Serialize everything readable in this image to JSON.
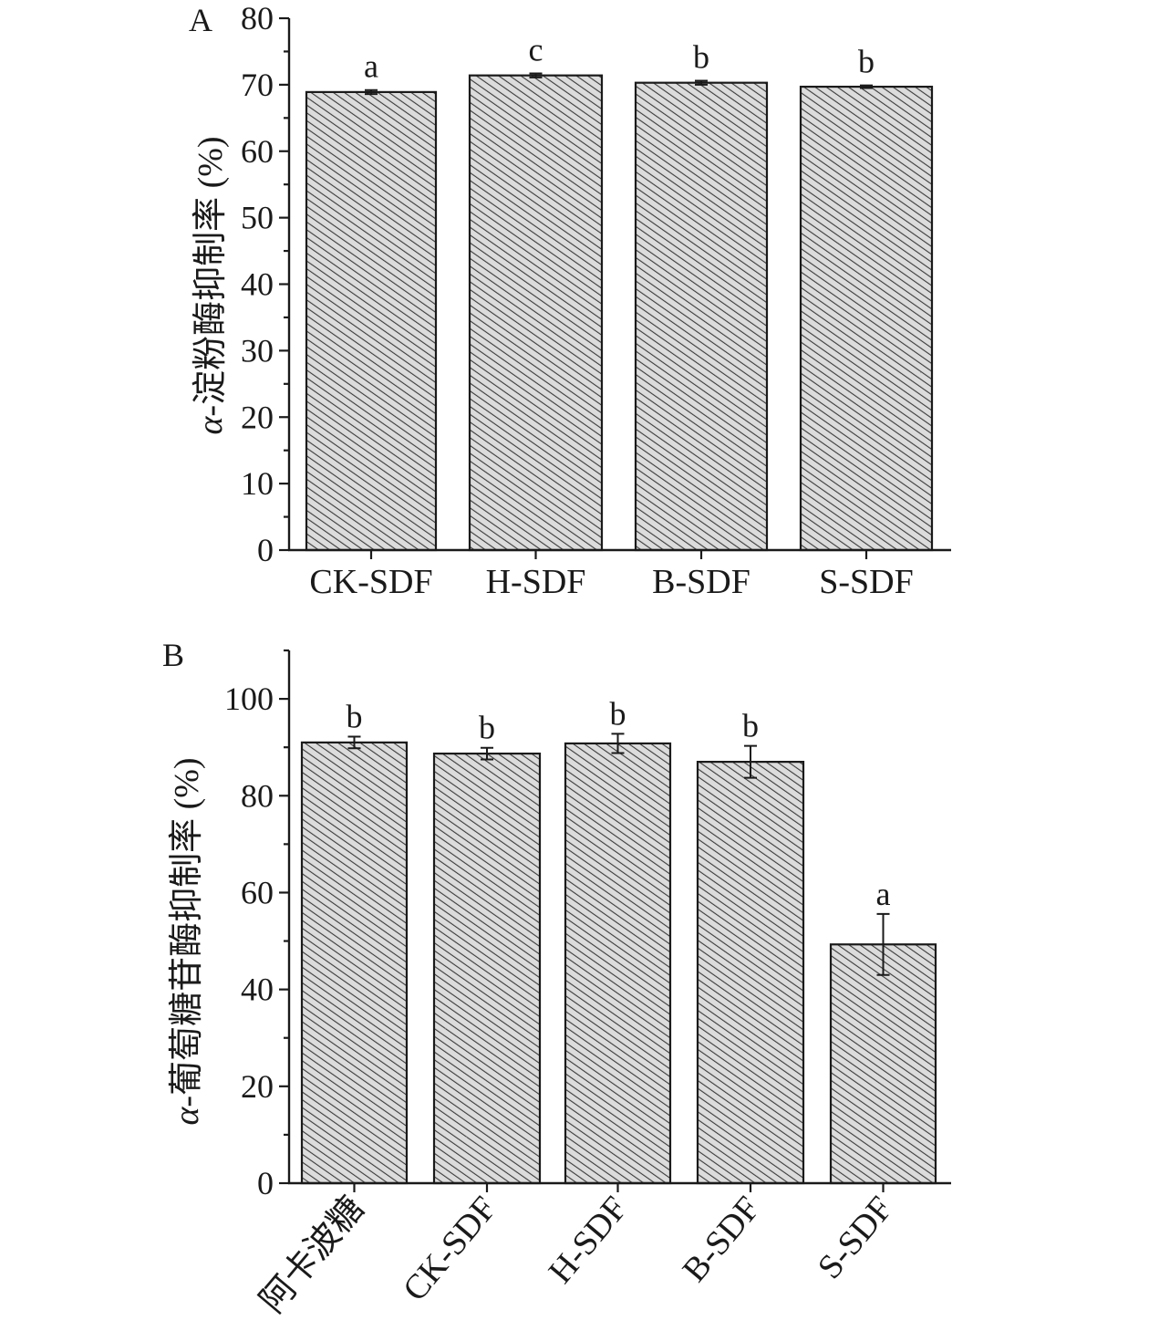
{
  "chart_data": [
    {
      "type": "bar",
      "panel_label": "A",
      "ylabel": "α-淀粉酶抑制率 (%)",
      "ylabel_italic_prefix": "α",
      "ylabel_rest": "-淀粉酶抑制率 (%)",
      "ylim": [
        0,
        80
      ],
      "yticks": [
        0,
        10,
        20,
        30,
        40,
        50,
        60,
        70,
        80
      ],
      "categories": [
        "CK-SDF",
        "H-SDF",
        "B-SDF",
        "S-SDF"
      ],
      "values": [
        68.9,
        71.4,
        70.3,
        69.7
      ],
      "errors": [
        0.3,
        0.3,
        0.3,
        0.2
      ],
      "significance": [
        "a",
        "c",
        "b",
        "b"
      ],
      "grid": false,
      "fill": "hatched-gray"
    },
    {
      "type": "bar",
      "panel_label": "B",
      "ylabel": "α-葡萄糖苷酶抑制率 (%)",
      "ylabel_italic_prefix": "α",
      "ylabel_rest": "-葡萄糖苷酶抑制率 (%)",
      "ylim": [
        0,
        110
      ],
      "yticks": [
        0,
        20,
        40,
        60,
        80,
        100
      ],
      "categories": [
        "阿卡波糖",
        "CK-SDF",
        "H-SDF",
        "B-SDF",
        "S-SDF"
      ],
      "values": [
        91.0,
        88.7,
        90.8,
        87.0,
        49.3
      ],
      "errors": [
        1.2,
        1.2,
        2.0,
        3.3,
        6.3
      ],
      "significance": [
        "b",
        "b",
        "b",
        "b",
        "a"
      ],
      "grid": false,
      "fill": "hatched-gray"
    }
  ],
  "colors": {
    "axis": "#1a1a1a",
    "bar_fill": "#d9d9d9",
    "hatch": "#333333"
  }
}
